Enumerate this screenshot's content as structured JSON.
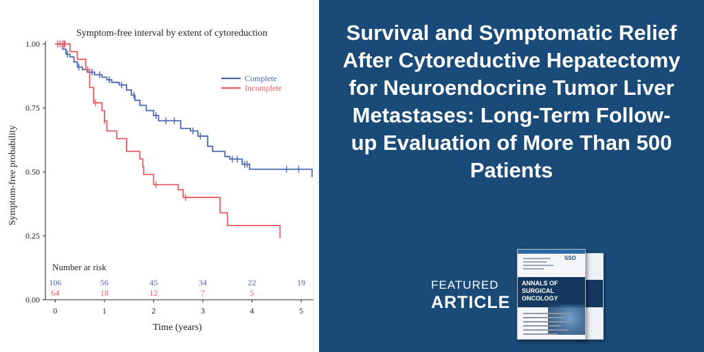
{
  "headline": "Survival and Symptomatic Relief After Cytoreductive Hepatectomy for Neuroendocrine Tumor Liver Metastases: Long-Term Follow-up Evaluation of More Than 500 Patients",
  "featured": {
    "line1": "FEATURED",
    "line2": "ARTICLE"
  },
  "journal": {
    "title": "ANNALS OF SURGICAL ONCOLOGY",
    "badge": "SSO"
  },
  "colors": {
    "complete": "#4a67b4",
    "incomplete": "#e85a5f",
    "panel": "#1a4a78",
    "axis": "#222222"
  },
  "chart_data": {
    "type": "line",
    "subtype": "kaplan-meier step",
    "title": "Symptom-free interval by extent of cytoreduction",
    "xlabel": "Time (years)",
    "ylabel": "Symptom-free probability",
    "xlim": [
      -0.2,
      5.25
    ],
    "ylim": [
      0,
      1.0
    ],
    "xticks": [
      "0",
      "1",
      "2",
      "3",
      "4",
      "5"
    ],
    "yticks": [
      "0.00",
      "0.25",
      "0.50",
      "0.75",
      "1.00"
    ],
    "legend_position": "top-right",
    "series": [
      {
        "name": "Complete",
        "color": "#4a67b4",
        "steps": [
          [
            0,
            1.0
          ],
          [
            0.15,
            0.98
          ],
          [
            0.22,
            0.96
          ],
          [
            0.3,
            0.95
          ],
          [
            0.38,
            0.93
          ],
          [
            0.45,
            0.91
          ],
          [
            0.55,
            0.9
          ],
          [
            0.65,
            0.89
          ],
          [
            0.8,
            0.88
          ],
          [
            0.95,
            0.87
          ],
          [
            1.05,
            0.86
          ],
          [
            1.15,
            0.85
          ],
          [
            1.3,
            0.84
          ],
          [
            1.45,
            0.82
          ],
          [
            1.55,
            0.8
          ],
          [
            1.62,
            0.78
          ],
          [
            1.72,
            0.76
          ],
          [
            1.85,
            0.74
          ],
          [
            2.0,
            0.72
          ],
          [
            2.1,
            0.7
          ],
          [
            2.35,
            0.7
          ],
          [
            2.55,
            0.67
          ],
          [
            2.75,
            0.66
          ],
          [
            2.9,
            0.64
          ],
          [
            3.1,
            0.6
          ],
          [
            3.2,
            0.58
          ],
          [
            3.45,
            0.56
          ],
          [
            3.55,
            0.55
          ],
          [
            3.8,
            0.53
          ],
          [
            3.95,
            0.51
          ],
          [
            5.2,
            0.51
          ],
          [
            5.22,
            0.48
          ]
        ],
        "censors": [
          0.1,
          0.25,
          0.48,
          0.75,
          0.9,
          1.1,
          1.35,
          1.6,
          2.05,
          2.25,
          2.42,
          2.8,
          2.95,
          3.6,
          3.7,
          3.85,
          3.9,
          4.7,
          4.95
        ]
      },
      {
        "name": "Incomplete",
        "color": "#e85a5f",
        "steps": [
          [
            0,
            1.0
          ],
          [
            0.3,
            0.97
          ],
          [
            0.45,
            0.94
          ],
          [
            0.62,
            0.9
          ],
          [
            0.7,
            0.83
          ],
          [
            0.78,
            0.77
          ],
          [
            0.95,
            0.74
          ],
          [
            1.0,
            0.7
          ],
          [
            1.05,
            0.66
          ],
          [
            1.25,
            0.63
          ],
          [
            1.45,
            0.58
          ],
          [
            1.72,
            0.55
          ],
          [
            1.78,
            0.52
          ],
          [
            1.8,
            0.49
          ],
          [
            2.0,
            0.45
          ],
          [
            2.5,
            0.43
          ],
          [
            2.6,
            0.4
          ],
          [
            3.35,
            0.34
          ],
          [
            3.5,
            0.29
          ],
          [
            4.55,
            0.29
          ],
          [
            4.57,
            0.24
          ]
        ],
        "censors": [
          0.05,
          0.1,
          0.15,
          0.18,
          0.2,
          0.66,
          0.82,
          1.0,
          2.05,
          2.65
        ]
      }
    ],
    "risk_table": {
      "title": "Number ar risk",
      "times": [
        0,
        1,
        2,
        3,
        4,
        5
      ],
      "complete": [
        "106",
        "56",
        "45",
        "34",
        "22",
        "19"
      ],
      "incomplete": [
        "64",
        "18",
        "12",
        "7",
        "5",
        ""
      ]
    }
  }
}
